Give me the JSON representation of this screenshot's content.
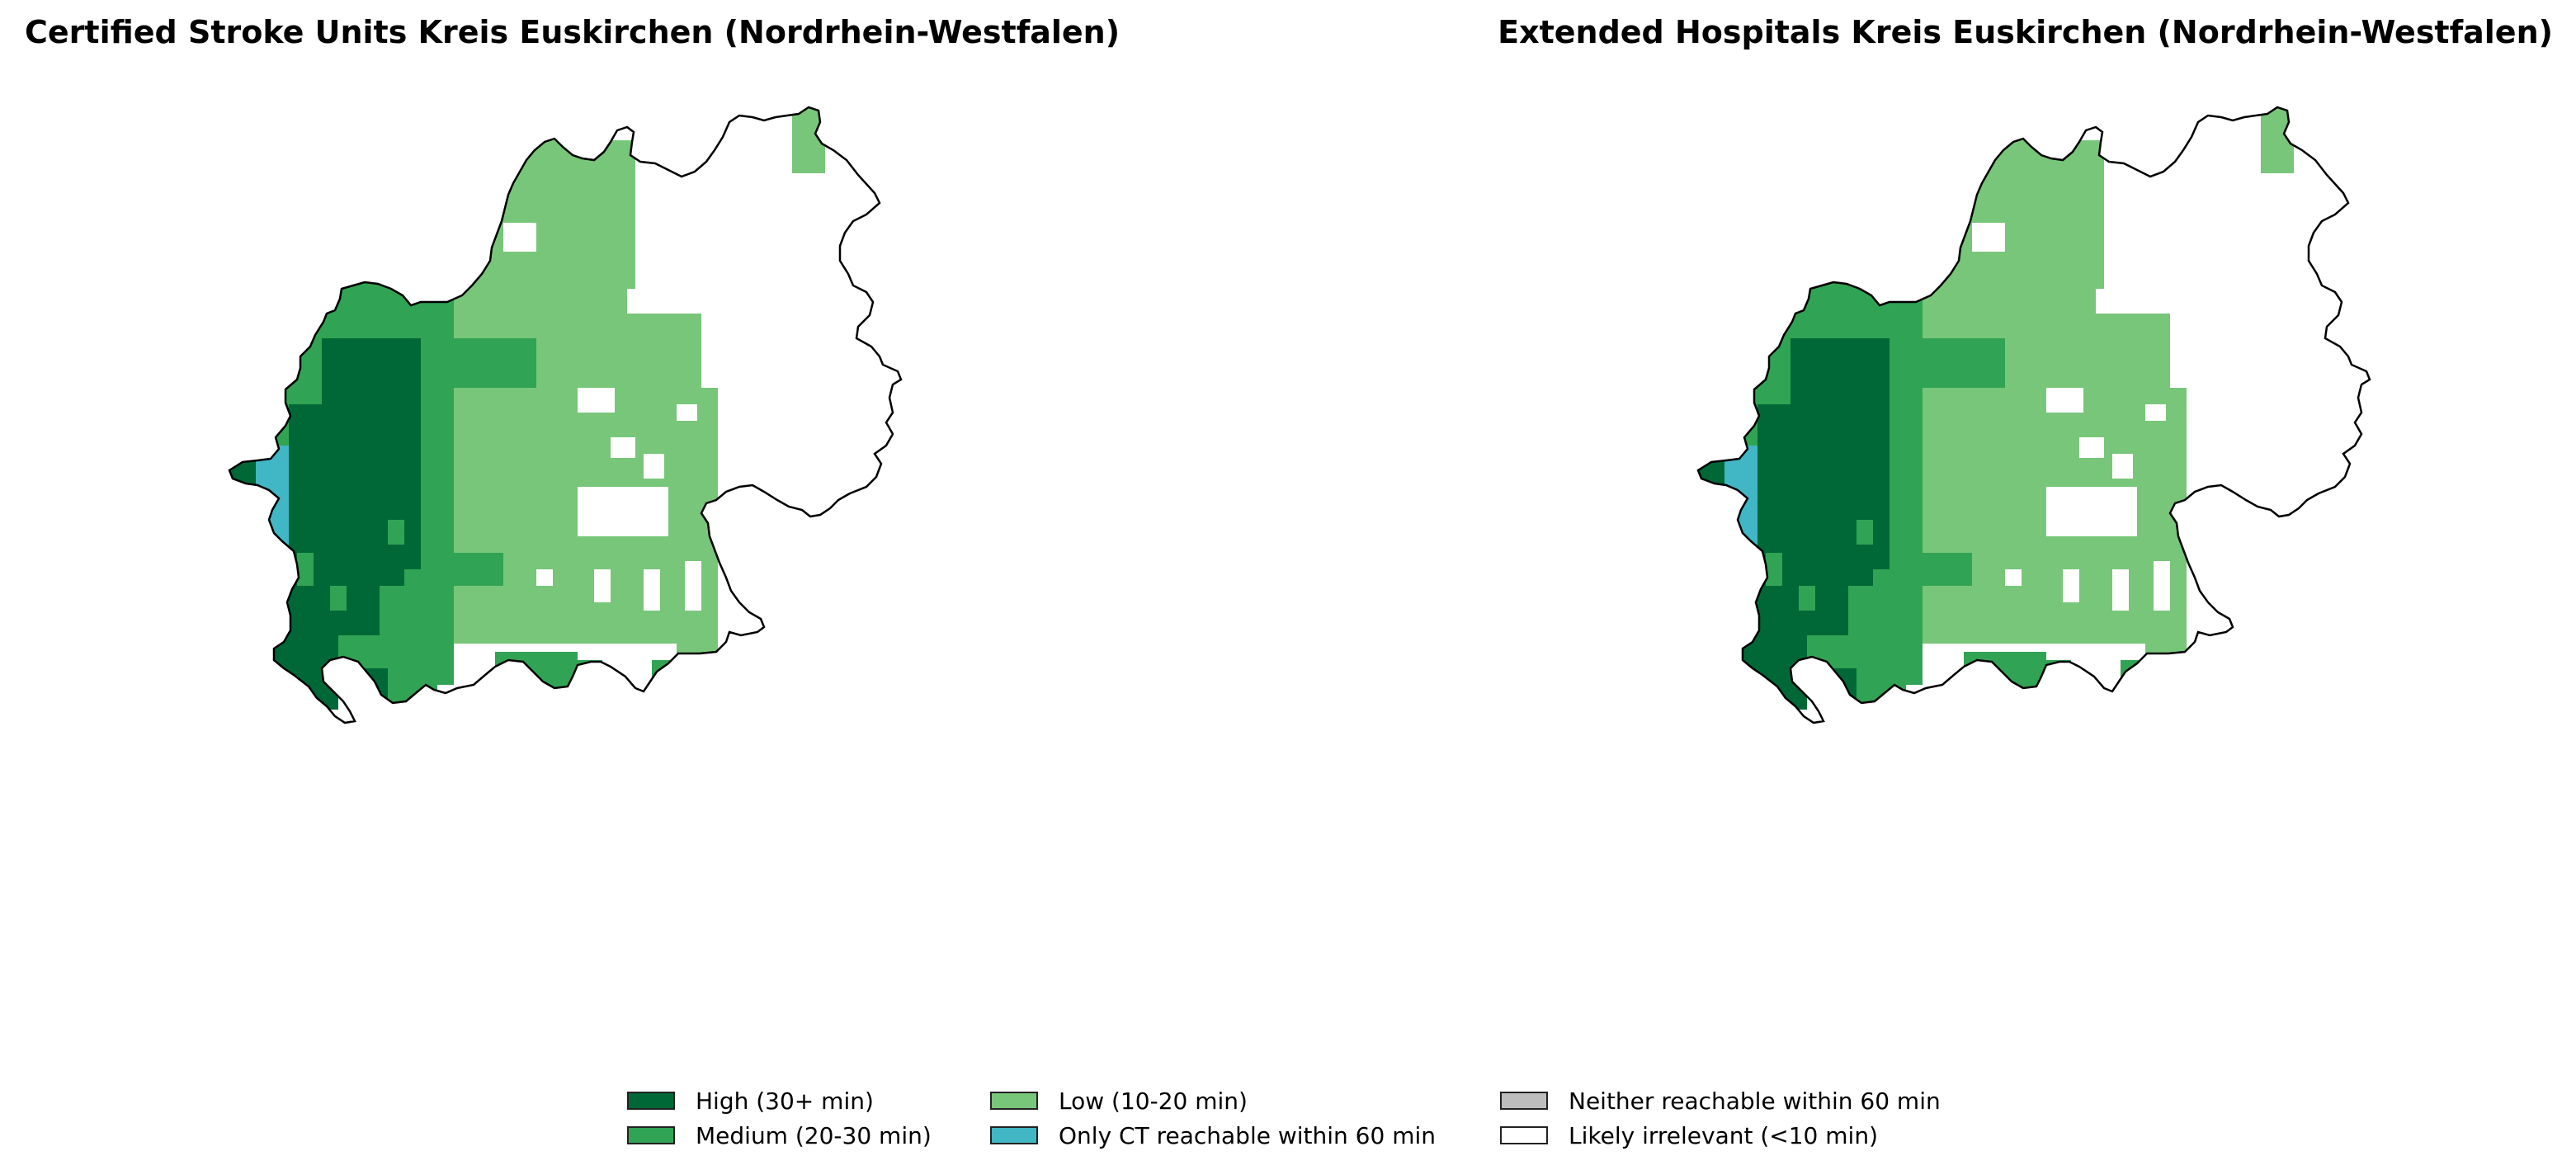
{
  "colors": {
    "high": "#006837",
    "medium": "#31a354",
    "low": "#78c679",
    "ct_only": "#41b6c4",
    "neither": "#bdbdbd",
    "irrelevant": "#ffffff",
    "boundary": "#000000"
  },
  "left_map": {
    "title": "Certified Stroke Units Kreis Euskirchen (Nordrhein-Westfalen)"
  },
  "right_map": {
    "title": "Extended Hospitals Kreis Euskirchen (Nordrhein-Westfalen)"
  },
  "legend": {
    "items": [
      {
        "key": "high",
        "label": "High (30+ min)",
        "color": "#006837"
      },
      {
        "key": "medium",
        "label": "Medium (20-30 min)",
        "color": "#31a354"
      },
      {
        "key": "low",
        "label": "Low (10-20 min)",
        "color": "#78c679"
      },
      {
        "key": "ct_only",
        "label": "Only CT reachable within 60 min",
        "color": "#41b6c4"
      },
      {
        "key": "neither",
        "label": "Neither reachable within 60 min",
        "color": "#bdbdbd"
      },
      {
        "key": "irrelevant",
        "label": "Likely irrelevant (<10 min)",
        "color": "#ffffff"
      }
    ]
  }
}
